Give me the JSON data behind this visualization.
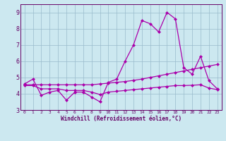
{
  "title": "",
  "xlabel": "Windchill (Refroidissement éolien,°C)",
  "ylabel": "",
  "bg_color": "#cce8f0",
  "line_color": "#aa00aa",
  "grid_color": "#99bbcc",
  "axis_color": "#660066",
  "tick_color": "#660066",
  "xlim": [
    -0.5,
    23.5
  ],
  "ylim": [
    3,
    9.5
  ],
  "yticks": [
    3,
    4,
    5,
    6,
    7,
    8,
    9
  ],
  "xticks": [
    0,
    1,
    2,
    3,
    4,
    5,
    6,
    7,
    8,
    9,
    10,
    11,
    12,
    13,
    14,
    15,
    16,
    17,
    18,
    19,
    20,
    21,
    22,
    23
  ],
  "line1_x": [
    0,
    1,
    2,
    3,
    4,
    5,
    6,
    7,
    8,
    9,
    10,
    11,
    12,
    13,
    14,
    15,
    16,
    17,
    18,
    19,
    20,
    21,
    22,
    23
  ],
  "line1_y": [
    4.6,
    4.9,
    3.9,
    4.1,
    4.2,
    3.6,
    4.1,
    4.1,
    3.8,
    3.5,
    4.7,
    4.9,
    6.0,
    7.0,
    8.5,
    8.3,
    7.8,
    9.0,
    8.6,
    5.6,
    5.2,
    6.3,
    4.8,
    4.3
  ],
  "line2_x": [
    0,
    1,
    2,
    3,
    4,
    5,
    6,
    7,
    8,
    9,
    10,
    11,
    12,
    13,
    14,
    15,
    16,
    17,
    18,
    19,
    20,
    21,
    22,
    23
  ],
  "line2_y": [
    4.55,
    4.55,
    4.55,
    4.55,
    4.55,
    4.55,
    4.55,
    4.55,
    4.55,
    4.6,
    4.65,
    4.7,
    4.75,
    4.82,
    4.9,
    5.0,
    5.1,
    5.2,
    5.3,
    5.4,
    5.5,
    5.6,
    5.7,
    5.8
  ],
  "line3_x": [
    0,
    1,
    2,
    3,
    4,
    5,
    6,
    7,
    8,
    9,
    10,
    11,
    12,
    13,
    14,
    15,
    16,
    17,
    18,
    19,
    20,
    21,
    22,
    23
  ],
  "line3_y": [
    4.5,
    4.5,
    4.3,
    4.3,
    4.3,
    4.2,
    4.2,
    4.2,
    4.1,
    3.95,
    4.1,
    4.15,
    4.2,
    4.25,
    4.3,
    4.35,
    4.4,
    4.45,
    4.5,
    4.5,
    4.52,
    4.55,
    4.35,
    4.25
  ],
  "marker": "D",
  "markersize": 2.5,
  "linewidth": 0.9
}
